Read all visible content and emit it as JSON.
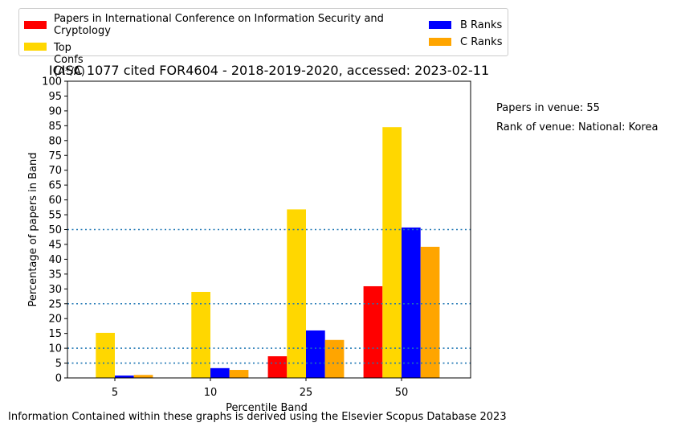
{
  "chart_data": {
    "type": "bar",
    "title": "ICISC 1077 cited FOR4604 - 2018-2019-2020, accessed: 2023-02-11",
    "xlabel": "Percentile Band",
    "ylabel": "Percentage of papers in Band",
    "categories": [
      "5",
      "10",
      "25",
      "50"
    ],
    "ylim": [
      0,
      100
    ],
    "yticks": [
      0,
      5,
      10,
      15,
      20,
      25,
      30,
      35,
      40,
      45,
      50,
      55,
      60,
      65,
      70,
      75,
      80,
      85,
      90,
      95,
      100
    ],
    "reference_lines": [
      5,
      10,
      25,
      50
    ],
    "series": [
      {
        "name": "Papers in International Conference on Information Security and Cryptology",
        "color": "#ff0000",
        "values": [
          0,
          0,
          7.3,
          30.9
        ]
      },
      {
        "name": "Top Confs (A*/A)",
        "color": "#ffd700",
        "values": [
          15.2,
          29.0,
          56.8,
          84.5
        ]
      },
      {
        "name": "B Ranks",
        "color": "#0000ff",
        "values": [
          0.8,
          3.3,
          16.0,
          50.7
        ]
      },
      {
        "name": "C Ranks",
        "color": "#ffa500",
        "values": [
          1.0,
          2.7,
          12.8,
          44.2
        ]
      }
    ],
    "legend_placement": "top"
  },
  "side_notes": {
    "papers_in_venue": "Papers in venue: 55",
    "rank_of_venue": "Rank of venue: National: Korea"
  },
  "footer": "Information Contained within these graphs is derived using the Elsevier Scopus Database 2023"
}
